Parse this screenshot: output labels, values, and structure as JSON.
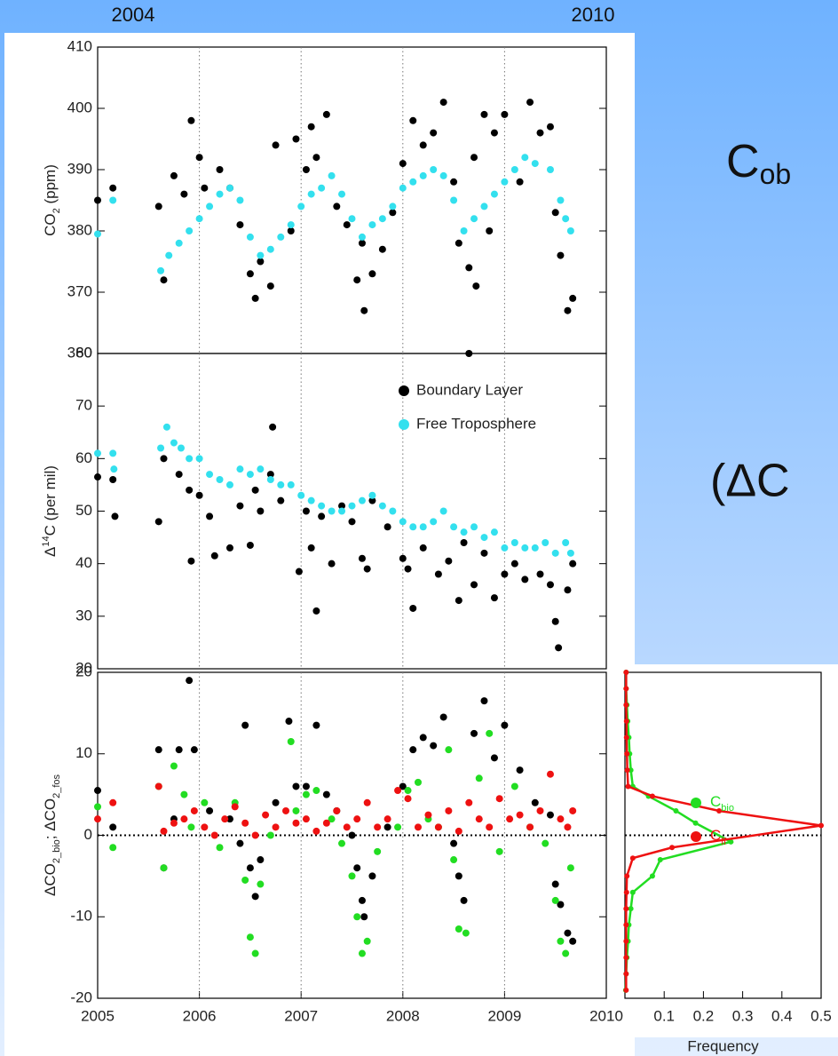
{
  "header_labels": [
    "2004",
    "2010"
  ],
  "side_texts": [
    {
      "text": "C",
      "sub": "ob"
    },
    {
      "text": "(ΔC"
    }
  ],
  "chart_data": [
    {
      "type": "scatter",
      "ylabel_parts": [
        {
          "text": "CO"
        },
        {
          "text": "2",
          "sub": true
        },
        {
          "text": " (ppm)"
        }
      ],
      "xlim": [
        2005,
        2010
      ],
      "ylim": [
        360,
        410
      ],
      "yticks": [
        360,
        370,
        380,
        390,
        400,
        410
      ],
      "vlines": [
        2006,
        2007,
        2008,
        2009
      ],
      "legend": false,
      "series": [
        {
          "color": "#000000",
          "x": [
            2005.0,
            2005.15,
            2005.6,
            2005.65,
            2005.75,
            2005.85,
            2005.92,
            2006.0,
            2006.05,
            2006.2,
            2006.3,
            2006.4,
            2006.5,
            2006.55,
            2006.6,
            2006.7,
            2006.75,
            2006.9,
            2006.95,
            2007.05,
            2007.1,
            2007.15,
            2007.25,
            2007.35,
            2007.45,
            2007.55,
            2007.6,
            2007.62,
            2007.7,
            2007.8,
            2007.9,
            2008.0,
            2008.1,
            2008.2,
            2008.3,
            2008.4,
            2008.5,
            2008.55,
            2008.65,
            2008.7,
            2008.72,
            2008.8,
            2008.85,
            2008.9,
            2009.0,
            2009.15,
            2009.25,
            2009.35,
            2009.45,
            2009.5,
            2009.55,
            2009.62,
            2009.67,
            2008.65
          ],
          "values": [
            385,
            387,
            384,
            372,
            389,
            386,
            398,
            392,
            387,
            390,
            387,
            381,
            373,
            369,
            375,
            371,
            394,
            380,
            395,
            390,
            397,
            392,
            399,
            384,
            381,
            372,
            378,
            367,
            373,
            377,
            383,
            391,
            398,
            394,
            396,
            401,
            388,
            378,
            374,
            392,
            371,
            399,
            380,
            396,
            399,
            388,
            401,
            396,
            397,
            383,
            376,
            367,
            369,
            360
          ]
        },
        {
          "color": "#33e0ee",
          "x": [
            2005.0,
            2005.15,
            2005.62,
            2005.7,
            2005.8,
            2005.9,
            2006.0,
            2006.1,
            2006.2,
            2006.3,
            2006.4,
            2006.5,
            2006.6,
            2006.7,
            2006.8,
            2006.9,
            2007.0,
            2007.1,
            2007.2,
            2007.3,
            2007.4,
            2007.5,
            2007.6,
            2007.7,
            2007.8,
            2007.9,
            2008.0,
            2008.1,
            2008.2,
            2008.3,
            2008.4,
            2008.5,
            2008.6,
            2008.7,
            2008.8,
            2008.9,
            2009.0,
            2009.1,
            2009.2,
            2009.3,
            2009.45,
            2009.55,
            2009.6,
            2009.65
          ],
          "values": [
            379.5,
            385,
            373.5,
            376,
            378,
            380,
            382,
            384,
            386,
            387,
            385,
            379,
            376,
            377,
            379,
            381,
            384,
            386,
            387,
            389,
            386,
            382,
            379,
            381,
            382,
            384,
            387,
            388,
            389,
            390,
            389,
            385,
            380,
            382,
            384,
            386,
            388,
            390,
            392,
            391,
            390,
            385,
            382,
            380
          ]
        }
      ]
    },
    {
      "type": "scatter",
      "ylabel_parts": [
        {
          "text": "Δ"
        },
        {
          "text": "14",
          "sup": true
        },
        {
          "text": "C (per mil)"
        }
      ],
      "xlim": [
        2005,
        2010
      ],
      "ylim": [
        20,
        80
      ],
      "yticks": [
        20,
        30,
        40,
        50,
        60,
        70,
        80
      ],
      "vlines": [
        2006,
        2007,
        2008,
        2009
      ],
      "legend": "upper right",
      "series": [
        {
          "name": "Boundary Layer",
          "color": "#000000",
          "x": [
            2005.0,
            2005.15,
            2005.17,
            2005.6,
            2005.65,
            2005.8,
            2005.9,
            2005.92,
            2006.0,
            2006.1,
            2006.15,
            2006.3,
            2006.4,
            2006.5,
            2006.55,
            2006.6,
            2006.7,
            2006.72,
            2006.8,
            2006.98,
            2007.05,
            2007.1,
            2007.15,
            2007.2,
            2007.3,
            2007.4,
            2007.5,
            2007.6,
            2007.65,
            2007.7,
            2007.85,
            2008.0,
            2008.05,
            2008.1,
            2008.2,
            2008.35,
            2008.45,
            2008.55,
            2008.6,
            2008.7,
            2008.8,
            2008.9,
            2009.0,
            2009.1,
            2009.2,
            2009.35,
            2009.45,
            2009.5,
            2009.53,
            2009.62,
            2009.67
          ],
          "values": [
            56.5,
            56,
            49,
            48,
            60,
            57,
            54,
            40.5,
            53,
            49,
            41.5,
            43,
            51,
            43.5,
            54,
            50,
            57,
            66,
            52,
            38.5,
            50,
            43,
            31,
            49,
            40,
            51,
            48,
            41,
            39,
            52,
            47,
            41,
            39,
            31.5,
            43,
            38,
            40.5,
            33,
            44,
            36,
            42,
            33.5,
            38,
            40,
            37,
            38,
            36,
            29,
            24,
            35,
            40
          ]
        },
        {
          "name": "Free Troposphere",
          "color": "#33e0ee",
          "x": [
            2005.0,
            2005.15,
            2005.16,
            2005.62,
            2005.68,
            2005.75,
            2005.82,
            2005.9,
            2006.0,
            2006.1,
            2006.2,
            2006.3,
            2006.4,
            2006.5,
            2006.6,
            2006.7,
            2006.8,
            2006.9,
            2007.0,
            2007.1,
            2007.2,
            2007.3,
            2007.4,
            2007.5,
            2007.6,
            2007.7,
            2007.8,
            2007.9,
            2008.0,
            2008.1,
            2008.2,
            2008.3,
            2008.4,
            2008.5,
            2008.6,
            2008.7,
            2008.8,
            2008.9,
            2009.0,
            2009.1,
            2009.2,
            2009.3,
            2009.4,
            2009.5,
            2009.6,
            2009.65
          ],
          "values": [
            61,
            61,
            58,
            62,
            66,
            63,
            62,
            60,
            60,
            57,
            56,
            55,
            58,
            57,
            58,
            56,
            55,
            55,
            53,
            52,
            51,
            50,
            50,
            51,
            52,
            53,
            51,
            50,
            48,
            47,
            47,
            48,
            50,
            47,
            46,
            47,
            45,
            46,
            43,
            44,
            43,
            43,
            44,
            42,
            44,
            42
          ]
        }
      ]
    },
    {
      "type": "scatter",
      "ylabel_parts": [
        {
          "text": "ΔCO"
        },
        {
          "text": "2_bio",
          "sub": true
        },
        {
          "text": "; ΔCO"
        },
        {
          "text": "2_fos",
          "sub": true
        }
      ],
      "xlim": [
        2005,
        2010
      ],
      "xticks": [
        2005,
        2006,
        2007,
        2008,
        2009,
        2010
      ],
      "ylim": [
        -20,
        20
      ],
      "yticks": [
        -20,
        -10,
        0,
        10,
        20
      ],
      "vlines": [
        2006,
        2007,
        2008,
        2009
      ],
      "hline": 0,
      "legend": false,
      "series": [
        {
          "color": "#000000",
          "x": [
            2005.0,
            2005.15,
            2005.6,
            2005.65,
            2005.75,
            2005.8,
            2005.9,
            2005.95,
            2006.1,
            2006.3,
            2006.4,
            2006.45,
            2006.5,
            2006.55,
            2006.6,
            2006.75,
            2006.88,
            2006.95,
            2007.05,
            2007.15,
            2007.25,
            2007.35,
            2007.5,
            2007.55,
            2007.6,
            2007.62,
            2007.7,
            2007.85,
            2008.0,
            2008.1,
            2008.2,
            2008.3,
            2008.4,
            2008.5,
            2008.55,
            2008.6,
            2008.7,
            2008.8,
            2008.9,
            2009.0,
            2009.15,
            2009.3,
            2009.45,
            2009.5,
            2009.55,
            2009.62,
            2009.67
          ],
          "values": [
            5.5,
            1,
            10.5,
            -4,
            2,
            10.5,
            19,
            10.5,
            3,
            2,
            -1,
            13.5,
            -4,
            -7.5,
            -3,
            4,
            14,
            6,
            6,
            13.5,
            5,
            3,
            0,
            -4,
            -8,
            -10,
            -5,
            1,
            6,
            10.5,
            12,
            11,
            14.5,
            -1,
            -5,
            -8,
            12.5,
            16.5,
            9.5,
            13.5,
            8,
            4,
            2.5,
            -6,
            -8.5,
            -12,
            -13
          ]
        },
        {
          "color": "#22dd22",
          "x": [
            2005.0,
            2005.15,
            2005.6,
            2005.65,
            2005.75,
            2005.85,
            2005.92,
            2006.05,
            2006.2,
            2006.35,
            2006.45,
            2006.5,
            2006.55,
            2006.6,
            2006.7,
            2006.9,
            2006.95,
            2007.05,
            2007.15,
            2007.3,
            2007.4,
            2007.5,
            2007.55,
            2007.6,
            2007.65,
            2007.75,
            2007.95,
            2008.05,
            2008.15,
            2008.25,
            2008.35,
            2008.45,
            2008.5,
            2008.55,
            2008.62,
            2008.75,
            2008.85,
            2008.95,
            2009.1,
            2009.25,
            2009.4,
            2009.5,
            2009.55,
            2009.6,
            2009.65
          ],
          "values": [
            3.5,
            -1.5,
            6,
            -4,
            8.5,
            5,
            1,
            4,
            -1.5,
            4,
            -5.5,
            -12.5,
            -14.5,
            -6,
            0,
            11.5,
            3,
            5,
            5.5,
            2,
            -1,
            -5,
            -10,
            -14.5,
            -13,
            -2,
            1,
            5.5,
            6.5,
            2,
            1,
            10.5,
            -3,
            -11.5,
            -12,
            7,
            12.5,
            -2,
            6,
            1,
            -1,
            -8,
            -13,
            -14.5,
            -4
          ]
        },
        {
          "color": "#ee1111",
          "x": [
            2005.0,
            2005.15,
            2005.6,
            2005.65,
            2005.75,
            2005.85,
            2005.95,
            2006.05,
            2006.15,
            2006.25,
            2006.35,
            2006.45,
            2006.55,
            2006.65,
            2006.75,
            2006.85,
            2006.95,
            2007.05,
            2007.15,
            2007.25,
            2007.35,
            2007.45,
            2007.55,
            2007.65,
            2007.75,
            2007.85,
            2007.95,
            2008.05,
            2008.15,
            2008.25,
            2008.35,
            2008.45,
            2008.55,
            2008.65,
            2008.75,
            2008.85,
            2008.95,
            2009.05,
            2009.15,
            2009.25,
            2009.35,
            2009.45,
            2009.55,
            2009.62,
            2009.67
          ],
          "values": [
            2,
            4,
            6,
            0.5,
            1.5,
            2,
            3,
            1,
            0,
            2,
            3.5,
            1.5,
            0,
            2.5,
            1,
            3,
            1.5,
            2,
            0.5,
            1.5,
            3,
            1,
            2,
            4,
            1,
            2,
            5.5,
            4.5,
            1,
            2.5,
            1,
            3,
            0.5,
            4,
            2,
            1,
            4.5,
            2,
            2.5,
            1,
            3,
            7.5,
            2,
            1,
            3
          ]
        }
      ]
    },
    {
      "type": "line",
      "xlabel": "Frequency",
      "xlim": [
        0,
        0.5
      ],
      "xticks": [
        0.1,
        0.2,
        0.3,
        0.4,
        0.5
      ],
      "ylim": [
        -20,
        20
      ],
      "hline": 0,
      "legend": "lower right",
      "series": [
        {
          "name": "C",
          "subscript": "bio",
          "color": "#22dd22",
          "y": [
            20,
            18,
            16,
            14,
            12,
            10,
            8,
            6,
            4.8,
            3,
            1.5,
            -0.8,
            -3,
            -5,
            -7,
            -9,
            -11,
            -13,
            -15,
            -17,
            -19
          ],
          "values": [
            0.003,
            0.003,
            0.005,
            0.007,
            0.01,
            0.012,
            0.015,
            0.02,
            0.06,
            0.13,
            0.18,
            0.27,
            0.09,
            0.07,
            0.02,
            0.015,
            0.01,
            0.008,
            0.005,
            0.003,
            0.002
          ]
        },
        {
          "name": "C",
          "subscript": "ff",
          "color": "#ee1111",
          "y": [
            20,
            18,
            16,
            14,
            12,
            10,
            8,
            6,
            4.8,
            3,
            1.2,
            -1.5,
            -2.8,
            -5,
            -7,
            -9,
            -11,
            -13,
            -15,
            -17,
            -19
          ],
          "values": [
            0.003,
            0.003,
            0.003,
            0.004,
            0.004,
            0.005,
            0.006,
            0.008,
            0.07,
            0.24,
            0.5,
            0.12,
            0.02,
            0.005,
            0.004,
            0.003,
            0.003,
            0.003,
            0.003,
            0.003,
            0.003
          ]
        }
      ]
    }
  ]
}
